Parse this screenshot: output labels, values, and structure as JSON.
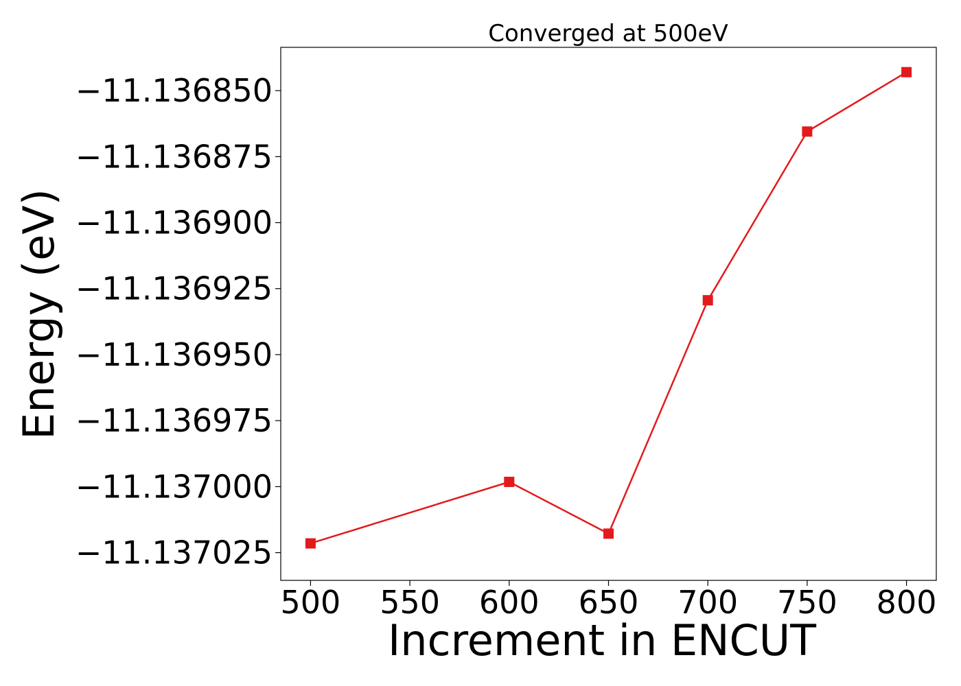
{
  "chart_data": {
    "type": "line",
    "title": "Converged at 500eV",
    "xlabel": "Increment in ENCUT",
    "ylabel": "Energy (eV)",
    "x": [
      500,
      600,
      650,
      700,
      750,
      800
    ],
    "series": [
      {
        "values": [
          -11.1370215,
          -11.1369982,
          -11.1370178,
          -11.1369294,
          -11.1368655,
          -11.136843
        ],
        "color": "#e31a1c",
        "marker": "square"
      }
    ],
    "xlim": [
      485,
      815
    ],
    "ylim": [
      -11.1370355,
      -11.1368336
    ],
    "xticks": [
      500,
      550,
      600,
      650,
      700,
      750,
      800
    ],
    "xtick_labels": [
      "500",
      "550",
      "600",
      "650",
      "700",
      "750",
      "800"
    ],
    "yticks": [
      -11.13685,
      -11.136875,
      -11.1369,
      -11.136925,
      -11.13695,
      -11.136975,
      -11.137,
      -11.137025
    ],
    "ytick_labels": [
      "−11.136850",
      "−11.136875",
      "−11.136900",
      "−11.136925",
      "−11.136950",
      "−11.136975",
      "−11.137000",
      "−11.137025"
    ],
    "grid": false,
    "legend": "none"
  }
}
